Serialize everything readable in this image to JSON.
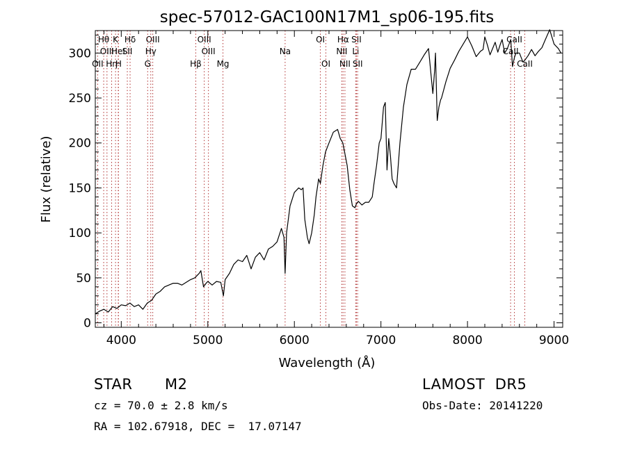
{
  "chart_data": {
    "type": "line",
    "title": "spec-57012-GAC100N17M1_sp06-195.fits",
    "xlabel": "Wavelength (Å)",
    "ylabel": "Flux (relative)",
    "xlim": [
      3700,
      9100
    ],
    "ylim": [
      -5,
      325
    ],
    "xticks": [
      4000,
      5000,
      6000,
      7000,
      8000,
      9000
    ],
    "yticks": [
      0,
      50,
      100,
      150,
      200,
      250,
      300
    ],
    "grid": false,
    "line_color": "#000000",
    "marker_color": "#b03030",
    "line_markers": [
      {
        "label": "OII",
        "x": 3727,
        "row": 3
      },
      {
        "label": "Hθ",
        "x": 3797,
        "row": 1
      },
      {
        "label": "OIII",
        "x": 3835,
        "row": 2
      },
      {
        "label": "Hη",
        "x": 3889,
        "row": 3
      },
      {
        "label": "K",
        "x": 3934,
        "row": 1
      },
      {
        "label": "HeI",
        "x": 3965,
        "row": 2
      },
      {
        "label": "H",
        "x": 3968,
        "row": 3
      },
      {
        "label": "Hδ",
        "x": 4102,
        "row": 1
      },
      {
        "label": "SII",
        "x": 4070,
        "row": 2
      },
      {
        "label": "OIII",
        "x": 4364,
        "row": 1
      },
      {
        "label": "Hγ",
        "x": 4341,
        "row": 2
      },
      {
        "label": "G",
        "x": 4305,
        "row": 3
      },
      {
        "label": "OIII",
        "x": 4959,
        "row": 1
      },
      {
        "label": "OIII",
        "x": 5007,
        "row": 2
      },
      {
        "label": "Hβ",
        "x": 4861,
        "row": 3
      },
      {
        "label": "Mg",
        "x": 5175,
        "row": 3
      },
      {
        "label": "Na",
        "x": 5893,
        "row": 2
      },
      {
        "label": "OI",
        "x": 6300,
        "row": 1
      },
      {
        "label": "OI",
        "x": 6364,
        "row": 3
      },
      {
        "label": "Hα",
        "x": 6563,
        "row": 1
      },
      {
        "label": "NII",
        "x": 6548,
        "row": 2
      },
      {
        "label": "NII",
        "x": 6584,
        "row": 3
      },
      {
        "label": "SII",
        "x": 6717,
        "row": 1
      },
      {
        "label": "Li",
        "x": 6708,
        "row": 2
      },
      {
        "label": "SII",
        "x": 6731,
        "row": 3
      },
      {
        "label": "CaII",
        "x": 8542,
        "row": 1
      },
      {
        "label": "CaII",
        "x": 8498,
        "row": 2
      },
      {
        "label": "CaII",
        "x": 8662,
        "row": 3
      }
    ],
    "series": [
      {
        "x": [
          3700,
          3750,
          3800,
          3850,
          3900,
          3950,
          4000,
          4050,
          4100,
          4150,
          4200,
          4250,
          4300,
          4350,
          4400,
          4450,
          4500,
          4550,
          4600,
          4650,
          4700,
          4750,
          4800,
          4850,
          4900,
          4920,
          4950,
          4980,
          5000,
          5050,
          5100,
          5150,
          5180,
          5200,
          5250,
          5300,
          5350,
          5400,
          5450,
          5500,
          5550,
          5600,
          5650,
          5700,
          5750,
          5800,
          5850,
          5880,
          5893,
          5910,
          5950,
          6000,
          6050,
          6080,
          6100,
          6120,
          6150,
          6170,
          6200,
          6230,
          6250,
          6280,
          6300,
          6330,
          6360,
          6400,
          6450,
          6500,
          6530,
          6560,
          6580,
          6610,
          6640,
          6670,
          6700,
          6720,
          6740,
          6780,
          6820,
          6860,
          6900,
          6920,
          6950,
          6980,
          7000,
          7030,
          7050,
          7070,
          7090,
          7110,
          7130,
          7150,
          7180,
          7220,
          7260,
          7300,
          7350,
          7400,
          7450,
          7500,
          7550,
          7580,
          7600,
          7620,
          7630,
          7650,
          7670,
          7690,
          7700,
          7750,
          7800,
          7850,
          7900,
          7950,
          8000,
          8050,
          8100,
          8150,
          8180,
          8200,
          8230,
          8260,
          8290,
          8320,
          8350,
          8380,
          8400,
          8430,
          8460,
          8500,
          8520,
          8542,
          8560,
          8600,
          8640,
          8662,
          8700,
          8740,
          8780,
          8820,
          8860,
          8900,
          8950,
          9000,
          9050,
          9080
        ],
        "y": [
          10,
          13,
          15,
          12,
          18,
          16,
          20,
          19,
          22,
          18,
          20,
          15,
          22,
          25,
          32,
          35,
          40,
          42,
          44,
          44,
          42,
          45,
          48,
          50,
          55,
          58,
          40,
          44,
          46,
          42,
          46,
          45,
          30,
          48,
          55,
          65,
          70,
          68,
          75,
          60,
          73,
          78,
          70,
          82,
          85,
          90,
          105,
          95,
          55,
          100,
          130,
          145,
          150,
          148,
          150,
          115,
          95,
          88,
          100,
          120,
          140,
          160,
          155,
          175,
          190,
          200,
          212,
          215,
          205,
          200,
          190,
          175,
          148,
          130,
          128,
          133,
          135,
          131,
          134,
          134,
          140,
          155,
          175,
          200,
          205,
          240,
          245,
          170,
          205,
          185,
          160,
          155,
          150,
          200,
          240,
          265,
          282,
          282,
          290,
          298,
          305,
          275,
          255,
          280,
          300,
          225,
          240,
          248,
          250,
          268,
          283,
          292,
          302,
          310,
          318,
          308,
          296,
          302,
          304,
          318,
          309,
          298,
          305,
          312,
          301,
          310,
          315,
          300,
          305,
          315,
          285,
          295,
          300,
          300,
          290,
          292,
          297,
          304,
          297,
          302,
          306,
          315,
          326,
          310,
          305,
          300
        ]
      }
    ],
    "annotations": {
      "object_type": "STAR",
      "subclass": "M2",
      "survey": "LAMOST  DR5",
      "velocity": "cz = 70.0 ± 2.8 km/s",
      "obs_date": "Obs-Date: 20141220",
      "coords": "RA = 102.67918, DEC =  17.07147"
    }
  }
}
